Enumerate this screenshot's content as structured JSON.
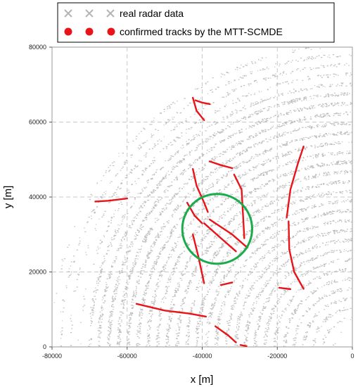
{
  "chart_data": {
    "type": "scatter",
    "xlabel": "x [m]",
    "ylabel": "y [m]",
    "xlim": [
      -80000,
      0
    ],
    "ylim": [
      0,
      80000
    ],
    "xticks": [
      -80000,
      -60000,
      -40000,
      -20000,
      0
    ],
    "yticks": [
      0,
      20000,
      40000,
      60000,
      80000
    ],
    "xtick_labels": [
      "-80000",
      "-60000",
      "-40000",
      "-20000",
      "0"
    ],
    "ytick_labels": [
      "0",
      "20000",
      "40000",
      "60000",
      "80000"
    ],
    "grid": true,
    "legend": {
      "position": "top",
      "entries": [
        {
          "label": "real radar data",
          "marker": "x",
          "color": "#b4b4b4"
        },
        {
          "label": "confirmed tracks by the MTT-SCMDE",
          "marker": "o",
          "color": "#e8141a"
        }
      ]
    },
    "series": [
      {
        "name": "real radar data",
        "style": "clutter",
        "color": "#b4b4b4",
        "region": {
          "center": [
            0,
            0
          ],
          "r_min": 5000,
          "r_max": 81000,
          "angle_deg": [
            0,
            100
          ]
        }
      },
      {
        "name": "confirmed tracks by the MTT-SCMDE",
        "color": "#e8141a",
        "tracks": [
          [
            [
              -42500,
              66500
            ],
            [
              -41500,
              63000
            ],
            [
              -39500,
              60500
            ]
          ],
          [
            [
              -41800,
              65800
            ],
            [
              -40000,
              65200
            ],
            [
              -38000,
              64800
            ]
          ],
          [
            [
              -68500,
              38800
            ],
            [
              -65000,
              39000
            ],
            [
              -60000,
              39600
            ]
          ],
          [
            [
              -42500,
              47500
            ],
            [
              -41500,
              43000
            ],
            [
              -39500,
              38500
            ],
            [
              -38500,
              36000
            ]
          ],
          [
            [
              -38000,
              49500
            ],
            [
              -35000,
              48500
            ],
            [
              -32000,
              47700
            ]
          ],
          [
            [
              -31500,
              46000
            ],
            [
              -29500,
              42000
            ],
            [
              -29000,
              33000
            ],
            [
              -28800,
              29000
            ]
          ],
          [
            [
              -13000,
              53500
            ],
            [
              -14500,
              49000
            ],
            [
              -16500,
              42000
            ],
            [
              -17500,
              34500
            ]
          ],
          [
            [
              -17000,
              33500
            ],
            [
              -16800,
              26000
            ],
            [
              -15500,
              20000
            ],
            [
              -13000,
              15500
            ]
          ],
          [
            [
              -44000,
              38500
            ],
            [
              -42000,
              35000
            ],
            [
              -40000,
              33000
            ]
          ],
          [
            [
              -39500,
              33000
            ],
            [
              -35000,
              29000
            ],
            [
              -31000,
              25500
            ]
          ],
          [
            [
              -38000,
              34000
            ],
            [
              -32000,
              30000
            ],
            [
              -28000,
              26500
            ]
          ],
          [
            [
              -42500,
              30000
            ],
            [
              -41000,
              24000
            ],
            [
              -39500,
              17000
            ]
          ],
          [
            [
              -35000,
              16500
            ],
            [
              -32000,
              17200
            ]
          ],
          [
            [
              -19500,
              15800
            ],
            [
              -16500,
              15400
            ]
          ],
          [
            [
              -57500,
              11500
            ],
            [
              -50000,
              9700
            ],
            [
              -43500,
              8900
            ],
            [
              -39000,
              8100
            ]
          ],
          [
            [
              -36500,
              5500
            ],
            [
              -33000,
              3000
            ],
            [
              -31000,
              1200
            ]
          ],
          [
            [
              -29800,
              500
            ],
            [
              -28200,
              200
            ]
          ]
        ]
      }
    ],
    "annotation": {
      "shape": "circle",
      "color": "#1aab4a",
      "center": [
        -36000,
        31500
      ],
      "radius": 9300
    }
  }
}
